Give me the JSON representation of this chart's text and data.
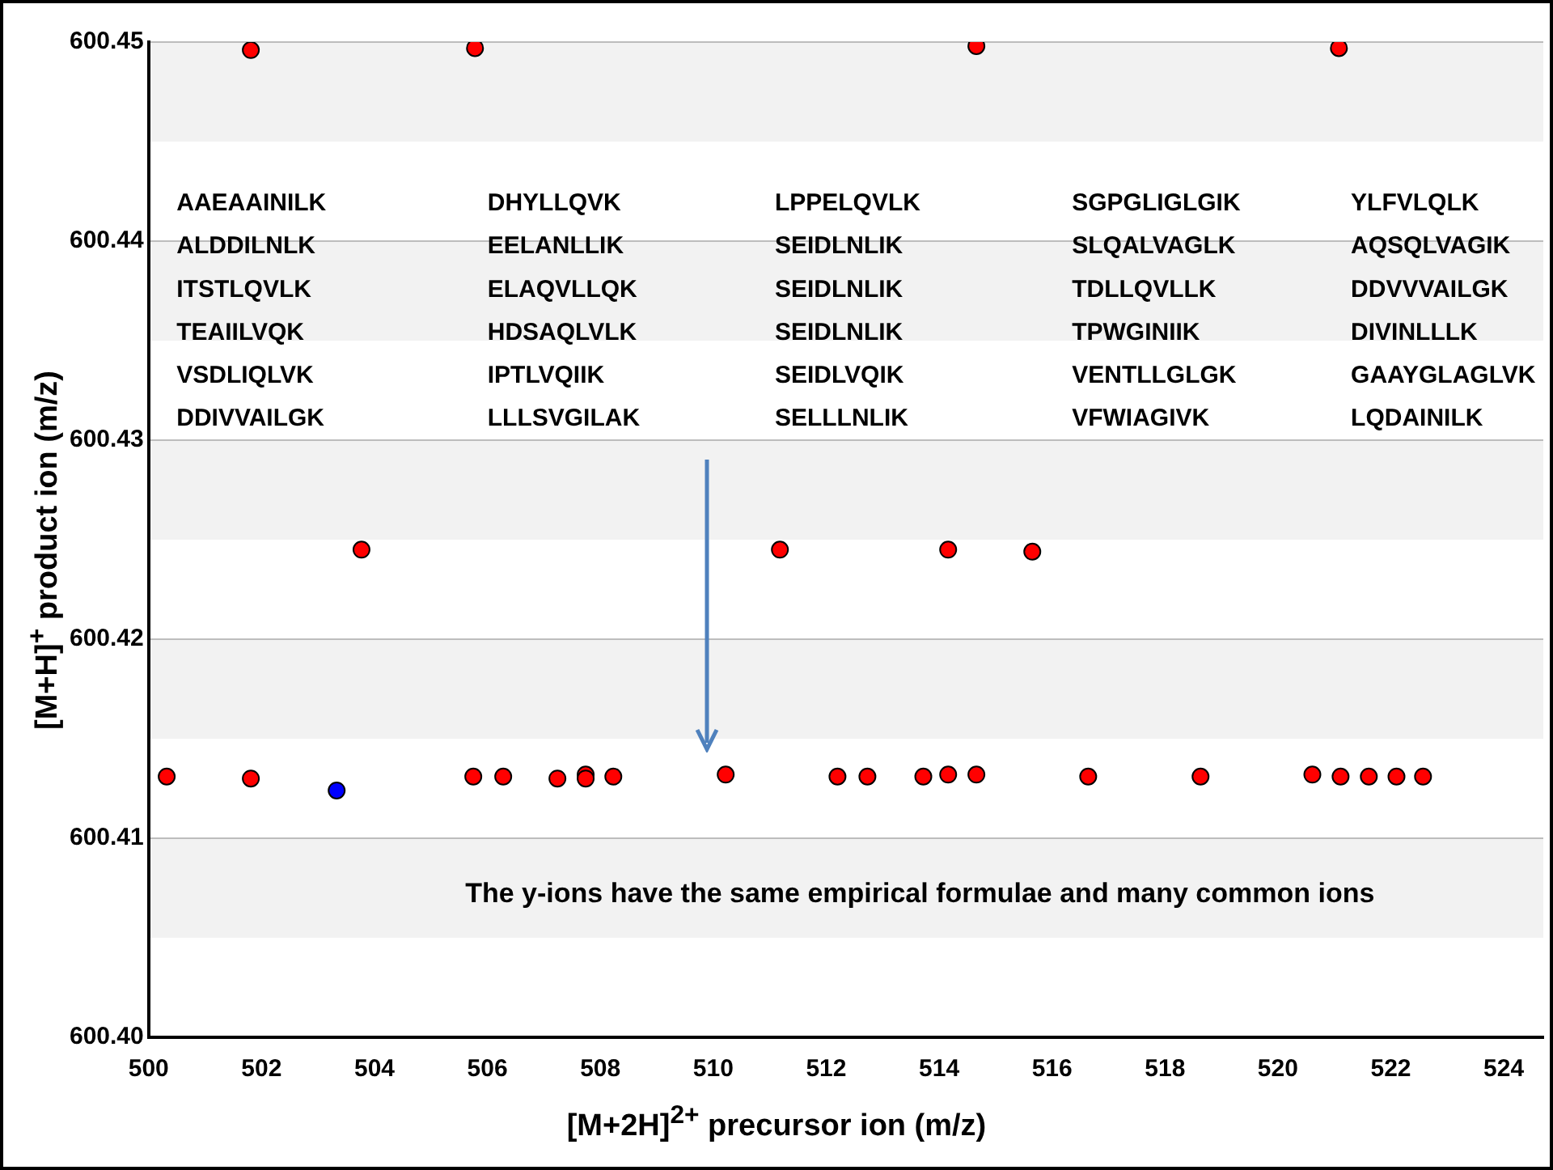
{
  "chart_data": {
    "type": "scatter",
    "xlabel": "[M+2H]$^{2+}$ precursor ion (m/z)",
    "ylabel": "[M+H]$^{+}$ product ion (m/z)",
    "xlim": [
      500,
      524.7
    ],
    "xticks": [
      500,
      502,
      504,
      506,
      508,
      510,
      512,
      514,
      516,
      518,
      520,
      522,
      524
    ],
    "ylim": [
      600.4,
      600.45
    ],
    "yticks": [
      {
        "value": 600.4,
        "label": "600.40"
      },
      {
        "value": 600.41,
        "label": "600.41"
      },
      {
        "value": 600.42,
        "label": "600.42"
      },
      {
        "value": 600.43,
        "label": "600.43"
      },
      {
        "value": 600.44,
        "label": "600.44"
      },
      {
        "value": 600.45,
        "label": "600.45"
      }
    ],
    "grid": "y",
    "marker": "circle",
    "bands": [
      {
        "axis": "y",
        "from": 600.405,
        "to": 600.41,
        "color": "#f2f2f2"
      },
      {
        "axis": "y",
        "from": 600.415,
        "to": 600.42,
        "color": "#f2f2f2"
      },
      {
        "axis": "y",
        "from": 600.425,
        "to": 600.43,
        "color": "#f2f2f2"
      },
      {
        "axis": "y",
        "from": 600.435,
        "to": 600.44,
        "color": "#f2f2f2"
      },
      {
        "axis": "y",
        "from": 600.445,
        "to": 600.45,
        "color": "#f2f2f2"
      }
    ],
    "series": [
      {
        "color": "#ff0000",
        "x": [
          500.32,
          501.81,
          505.75,
          506.28,
          507.24,
          507.74,
          507.74,
          508.23,
          510.22,
          512.2,
          512.73,
          513.72,
          514.16,
          514.66,
          516.64,
          518.63,
          520.61,
          521.11,
          521.61,
          522.1,
          522.57,
          503.77,
          511.18,
          514.16,
          515.65,
          501.81,
          505.78,
          514.66,
          521.08
        ],
        "values": [
          600.4131,
          600.413,
          600.4131,
          600.4131,
          600.413,
          600.4132,
          600.413,
          600.4131,
          600.4132,
          600.4131,
          600.4131,
          600.4131,
          600.4132,
          600.4132,
          600.4131,
          600.4131,
          600.4132,
          600.4131,
          600.4131,
          600.4131,
          600.4131,
          600.4245,
          600.4245,
          600.4245,
          600.4244,
          600.4496,
          600.4497,
          600.4498,
          600.4497
        ]
      },
      {
        "color": "#0000ff",
        "x": [
          503.33
        ],
        "values": [
          600.4124
        ]
      }
    ],
    "annotations": [
      "AAEAAINILK",
      "ALDDILNLK",
      "ITSTLQVLK",
      "TEAIILVQK",
      "VSDLIQLVK",
      "DDIVVAILGK",
      "DHYLLQVK",
      "EELANLLIK",
      "ELAQVLLQK",
      "HDSAQLVLK",
      "IPTLVQIIK",
      "LLLSVGILAK",
      "LPPELQVLK",
      "SEIDLNLIK",
      "SEIDLNLIK",
      "SEIDLNLIK",
      "SEIDLVQIK",
      "SELLLNLIK",
      "SGPGLIGLGIK",
      "SLQALVAGLK",
      "TDLLQVLLK",
      "TPWGINIIK",
      "VENTLLGLGK",
      "VFWIAGIVK",
      "YLFVLQLK",
      "AQSQLVAGIK",
      "DDVVVAILGK",
      "DIVINLLLK",
      "GAAYGLAGLVK",
      "LQDAINILK",
      "The y-ions have the same empirical formulae and many common ions"
    ]
  }
}
